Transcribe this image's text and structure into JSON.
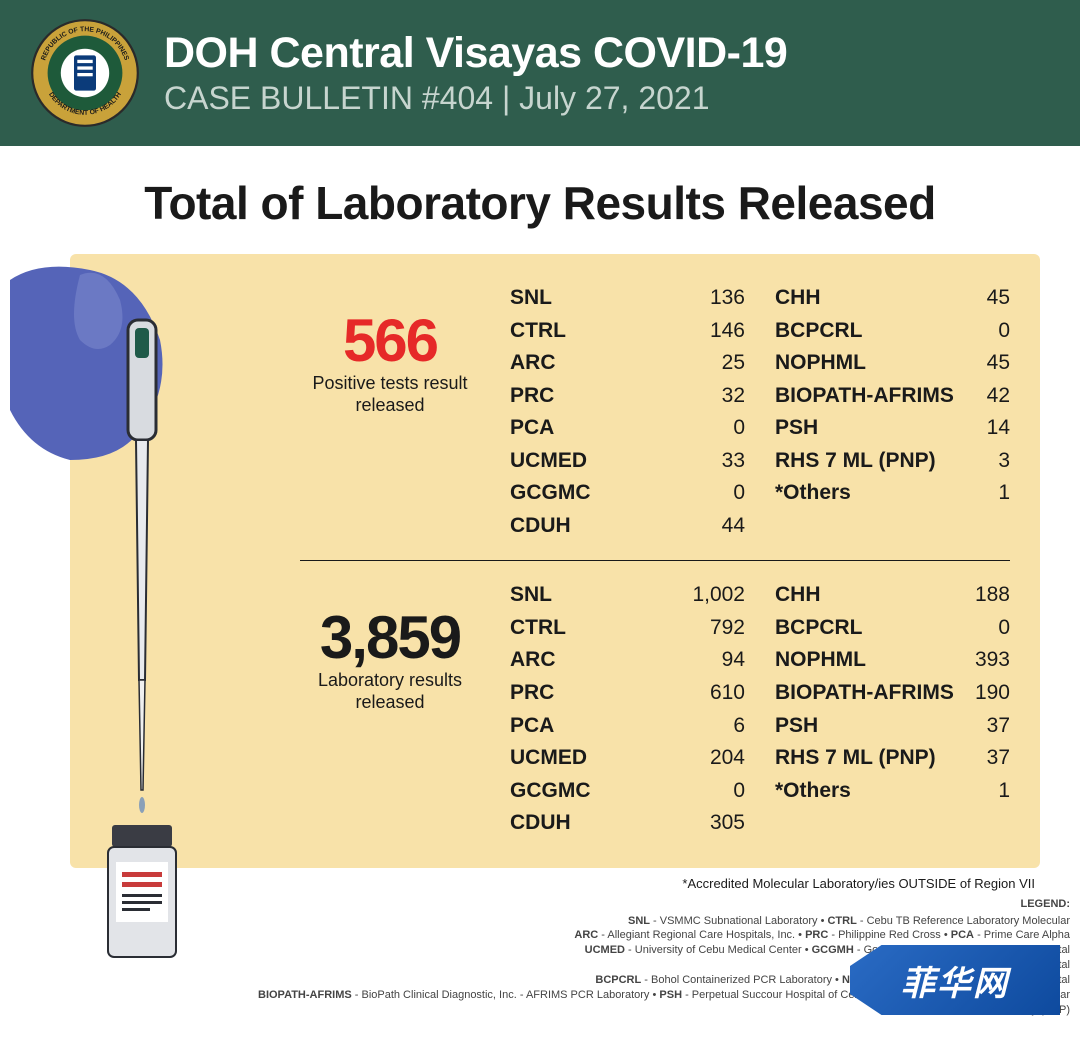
{
  "header": {
    "title": "DOH Central Visayas COVID-19",
    "subtitle": "CASE BULLETIN #404 | July 27, 2021",
    "seal_outer_text_top": "REPUBLIC OF THE PHILIPPINES",
    "seal_outer_text_bottom": "DEPARTMENT OF HEALTH",
    "colors": {
      "bg": "#2f5d4d",
      "title": "#ffffff",
      "sub": "#c7d5cf"
    }
  },
  "main_title": "Total of Laboratory Results Released",
  "panel": {
    "bg": "#f8e2a9"
  },
  "positive": {
    "value": "566",
    "label_line1": "Positive tests result",
    "label_line2": "released",
    "color": "#e62928",
    "labs_col1": [
      {
        "name": "SNL",
        "value": "136"
      },
      {
        "name": "CTRL",
        "value": "146"
      },
      {
        "name": "ARC",
        "value": "25"
      },
      {
        "name": "PRC",
        "value": "32"
      },
      {
        "name": "PCA",
        "value": "0"
      },
      {
        "name": "UCMED",
        "value": "33"
      },
      {
        "name": "GCGMC",
        "value": "0"
      },
      {
        "name": "CDUH",
        "value": "44"
      }
    ],
    "labs_col2": [
      {
        "name": "CHH",
        "value": "45"
      },
      {
        "name": "BCPCRL",
        "value": "0"
      },
      {
        "name": "NOPHML",
        "value": "45"
      },
      {
        "name": "BIOPATH-AFRIMS",
        "value": "42"
      },
      {
        "name": "PSH",
        "value": "14"
      },
      {
        "name": "RHS 7 ML (PNP)",
        "value": "3"
      },
      {
        "name": "*Others",
        "value": "1"
      }
    ]
  },
  "total": {
    "value": "3,859",
    "label_line1": "Laboratory results",
    "label_line2": "released",
    "color": "#1a1a1a",
    "labs_col1": [
      {
        "name": "SNL",
        "value": "1,002"
      },
      {
        "name": "CTRL",
        "value": "792"
      },
      {
        "name": "ARC",
        "value": "94"
      },
      {
        "name": "PRC",
        "value": "610"
      },
      {
        "name": "PCA",
        "value": "6"
      },
      {
        "name": "UCMED",
        "value": "204"
      },
      {
        "name": "GCGMC",
        "value": "0"
      },
      {
        "name": "CDUH",
        "value": "305"
      }
    ],
    "labs_col2": [
      {
        "name": "CHH",
        "value": "188"
      },
      {
        "name": "BCPCRL",
        "value": "0"
      },
      {
        "name": "NOPHML",
        "value": "393"
      },
      {
        "name": "BIOPATH-AFRIMS",
        "value": "190"
      },
      {
        "name": "PSH",
        "value": "37"
      },
      {
        "name": "RHS 7 ML (PNP)",
        "value": "37"
      },
      {
        "name": "*Others",
        "value": "1"
      }
    ]
  },
  "footnote": "*Accredited Molecular Laboratory/ies OUTSIDE of Region VII",
  "legend": {
    "heading": "LEGEND:",
    "lines": [
      "SNL - VSMMC Subnational Laboratory • CTRL - Cebu TB Reference Laboratory Molecular",
      "ARC - Allegiant Regional Care Hospitals, Inc. • PRC - Philippine Red Cross • PCA - Prime Care Alpha",
      "UCMED - University of Cebu Medical Center • GCGMH - Gov. Celestino Gallares Memorial Hospital",
      "CDUH - Cebu Doctors University Hospital",
      "BCPCRL - Bohol Containerized PCR Laboratory • NOPHML - Negros Oriental Provincial Hospital",
      "BIOPATH-AFRIMS - BioPath Clinical Diagnostic, Inc. - AFRIMS PCR Laboratory • PSH - Perpetual Succour Hospital of Cebu, Inc. • RHS 7 ML (PNP) RHS 7 Molecular Laboratory (PNP)"
    ]
  },
  "watermark": "菲华网",
  "illustration": {
    "hand_color": "#5564b8",
    "pipette_body": "#d8dbe0",
    "pipette_tip": "#f0f0f0",
    "vial_body": "#e2e4e8",
    "vial_cap": "#3a3c44",
    "vial_label_bg": "#ffffff",
    "vial_label_bar": "#c83b3b"
  }
}
